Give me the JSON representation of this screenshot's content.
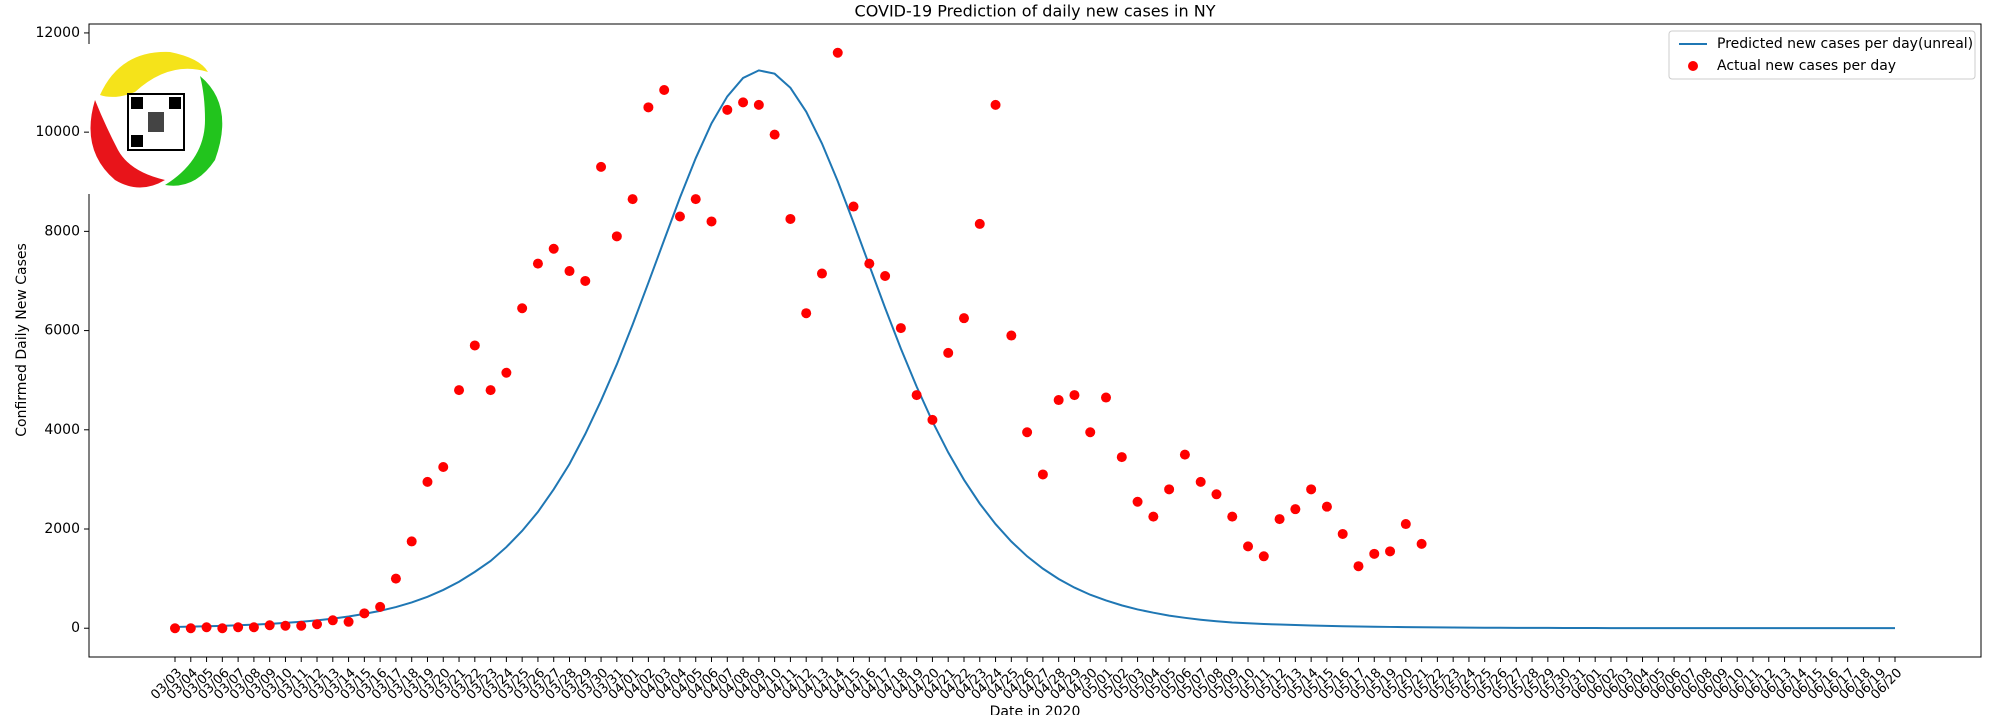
{
  "chart_data": {
    "type": "line",
    "title": "COVID-19 Prediction of daily new cases in NY",
    "x_label": "Date in 2020",
    "y_label": "Confirmed Daily New Cases",
    "categories": [
      "03/03",
      "03/04",
      "03/05",
      "03/06",
      "03/07",
      "03/08",
      "03/09",
      "03/10",
      "03/11",
      "03/12",
      "03/13",
      "03/14",
      "03/15",
      "03/16",
      "03/17",
      "03/18",
      "03/19",
      "03/20",
      "03/21",
      "03/22",
      "03/23",
      "03/24",
      "03/25",
      "03/26",
      "03/27",
      "03/28",
      "03/29",
      "03/30",
      "03/31",
      "04/01",
      "04/02",
      "04/03",
      "04/04",
      "04/05",
      "04/06",
      "04/07",
      "04/08",
      "04/09",
      "04/10",
      "04/11",
      "04/12",
      "04/13",
      "04/14",
      "04/15",
      "04/16",
      "04/17",
      "04/18",
      "04/19",
      "04/20",
      "04/21",
      "04/22",
      "04/23",
      "04/24",
      "04/25",
      "04/26",
      "04/27",
      "04/28",
      "04/29",
      "04/30",
      "05/01",
      "05/02",
      "05/03",
      "05/04",
      "05/05",
      "05/06",
      "05/07",
      "05/08",
      "05/09",
      "05/10",
      "05/11",
      "05/12",
      "05/13",
      "05/14",
      "05/15",
      "05/16",
      "05/17",
      "05/18",
      "05/19",
      "05/20",
      "05/21",
      "05/22",
      "05/23",
      "05/24",
      "05/25",
      "05/26",
      "05/27",
      "05/28",
      "05/29",
      "05/30",
      "05/31",
      "06/01",
      "06/02",
      "06/03",
      "06/04",
      "06/05",
      "06/06",
      "06/07",
      "06/08",
      "06/09",
      "06/10",
      "06/11",
      "06/12",
      "06/13",
      "06/14",
      "06/15",
      "06/16",
      "06/17",
      "06/18",
      "06/19",
      "06/20"
    ],
    "series": [
      {
        "name": "Predicted new cases per day(unreal)",
        "type": "line",
        "color": "#1f77b4",
        "values": [
          26,
          32,
          39,
          48,
          59,
          72,
          88,
          107,
          131,
          159,
          194,
          237,
          289,
          350,
          427,
          520,
          634,
          772,
          937,
          1136,
          1355,
          1636,
          1963,
          2345,
          2800,
          3310,
          3915,
          4590,
          5320,
          6120,
          6965,
          7826,
          8680,
          9475,
          10177,
          10720,
          11093,
          11245,
          11178,
          10894,
          10413,
          9771,
          9010,
          8176,
          7314,
          6457,
          5636,
          4870,
          4169,
          3544,
          2992,
          2512,
          2099,
          1748,
          1450,
          1201,
          992,
          819,
          675,
          560,
          461,
          379,
          313,
          255,
          210,
          172,
          141,
          115,
          100,
          86,
          74,
          64,
          55,
          47,
          41,
          35,
          30,
          26,
          22,
          19,
          16,
          14,
          12,
          10,
          9,
          8,
          7,
          6,
          5,
          4,
          4,
          3,
          3,
          3,
          2,
          2,
          2,
          2,
          1,
          1,
          1,
          1,
          1,
          1,
          1,
          1,
          1,
          1,
          1,
          1
        ]
      },
      {
        "name": "Actual new cases per day",
        "type": "scatter",
        "color": "#ff0000",
        "values": [
          0,
          0,
          20,
          0,
          20,
          20,
          60,
          50,
          50,
          80,
          160,
          130,
          300,
          430,
          1000,
          1750,
          2950,
          3250,
          4800,
          5700,
          4800,
          5150,
          6450,
          7350,
          7650,
          7200,
          7000,
          9300,
          7900,
          8650,
          10500,
          10850,
          8300,
          8650,
          8200,
          10450,
          10600,
          10550,
          9950,
          8250,
          6350,
          7150,
          11600,
          8500,
          7350,
          7100,
          6050,
          4700,
          4200,
          5550,
          6250,
          8150,
          10550,
          5900,
          3950,
          3100,
          4600,
          4700,
          3950,
          4650,
          3450,
          2550,
          2250,
          2800,
          3500,
          2950,
          2700,
          2250,
          1650,
          1450,
          2200,
          2400,
          2800,
          2450,
          1900,
          1250,
          1500,
          1550,
          2100,
          1700,
          null,
          null,
          null,
          null,
          null,
          null,
          null,
          null,
          null,
          null,
          null,
          null,
          null,
          null,
          null,
          null,
          null,
          null,
          null,
          null,
          null,
          null,
          null,
          null,
          null,
          null,
          null,
          null,
          null,
          null
        ]
      }
    ],
    "ylim": [
      -580,
      12180
    ],
    "yticks": [
      0,
      2000,
      4000,
      6000,
      8000,
      10000,
      12000
    ],
    "legend": "upper right"
  }
}
